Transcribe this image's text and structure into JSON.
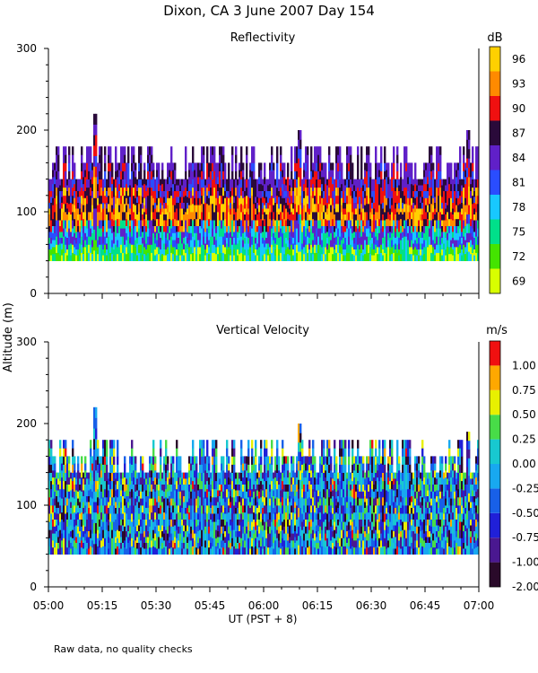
{
  "page_title": "Dixon, CA  3 June 2007  Day 154",
  "shared_ylabel": "Altitude (m)",
  "footnote": "Raw data, no quality checks",
  "chart_data": [
    {
      "type": "heatmap",
      "title": "Reflectivity",
      "xlabel": "UT  (PST + 8)",
      "ylabel": "Altitude (m)",
      "x_ticks": [
        "05:00",
        "05:15",
        "05:30",
        "05:45",
        "06:00",
        "06:15",
        "06:30",
        "06:45",
        "07:00"
      ],
      "x_range_minutes": [
        0,
        120
      ],
      "ylim": [
        0,
        300
      ],
      "y_ticks": [
        0,
        100,
        200,
        300
      ],
      "data_altitude_range": [
        40,
        180
      ],
      "max_altitude_spikes": [
        {
          "time": "05:13",
          "altitude": 220
        },
        {
          "time": "06:10",
          "altitude": 200
        },
        {
          "time": "06:57",
          "altitude": 200
        }
      ],
      "colorbar": {
        "unit": "dB",
        "levels": [
          69,
          72,
          75,
          78,
          81,
          84,
          87,
          90,
          93,
          96
        ],
        "colors": [
          "#d8ff00",
          "#44e400",
          "#00e08a",
          "#18c8ff",
          "#2a4dff",
          "#6020c8",
          "#2a0a3a",
          "#f01010",
          "#ff8a00",
          "#ffd000"
        ]
      }
    },
    {
      "type": "heatmap",
      "title": "Vertical Velocity",
      "xlabel": "UT  (PST + 8)",
      "ylabel": "Altitude (m)",
      "x_ticks": [
        "05:00",
        "05:15",
        "05:30",
        "05:45",
        "06:00",
        "06:15",
        "06:30",
        "06:45",
        "07:00"
      ],
      "x_range_minutes": [
        0,
        120
      ],
      "ylim": [
        0,
        300
      ],
      "y_ticks": [
        0,
        100,
        200,
        300
      ],
      "data_altitude_range": [
        40,
        180
      ],
      "max_altitude_spikes": [
        {
          "time": "05:13",
          "altitude": 220
        },
        {
          "time": "06:10",
          "altitude": 200
        },
        {
          "time": "06:57",
          "altitude": 190
        }
      ],
      "colorbar": {
        "unit": "m/s",
        "levels": [
          "-2.00",
          "-1.00",
          "-0.75",
          "-0.50",
          "-0.25",
          "0.00",
          "0.25",
          "0.50",
          "0.75",
          "1.00"
        ],
        "colors": [
          "#2a0a2a",
          "#4a1890",
          "#2020d8",
          "#1860e8",
          "#18a8f0",
          "#18c8d0",
          "#48dc48",
          "#e8f000",
          "#ffa800",
          "#f01010"
        ]
      }
    }
  ]
}
